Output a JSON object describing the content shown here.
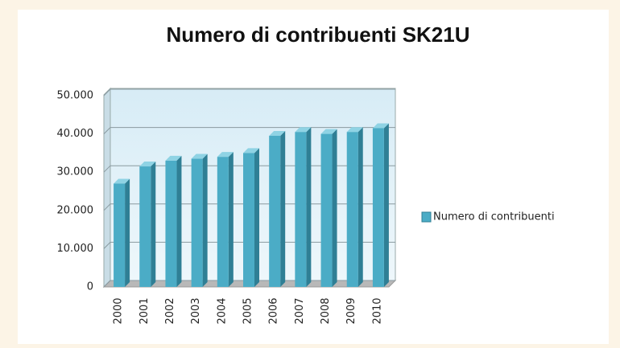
{
  "chart_data": {
    "type": "bar",
    "title": "Numero di contribuenti SK21U",
    "categories": [
      "2000",
      "2001",
      "2002",
      "2003",
      "2004",
      "2005",
      "2006",
      "2007",
      "2008",
      "2009",
      "2010"
    ],
    "series": [
      {
        "name": "Numero di contribuenti",
        "color": "#4bacc6",
        "values": [
          27000,
          31500,
          33000,
          33500,
          34000,
          35000,
          39500,
          40500,
          40000,
          40500,
          41500
        ]
      }
    ],
    "ylim": [
      0,
      50000
    ],
    "yticks": [
      0,
      {
        "value": 10000,
        "label": "10.000"
      },
      {
        "value": 20000,
        "label": "20.000"
      },
      {
        "value": 30000,
        "label": "30.000"
      },
      {
        "value": 40000,
        "label": "40.000"
      },
      {
        "value": 50000,
        "label": "50.000"
      }
    ],
    "grid": true,
    "legend": "right"
  }
}
